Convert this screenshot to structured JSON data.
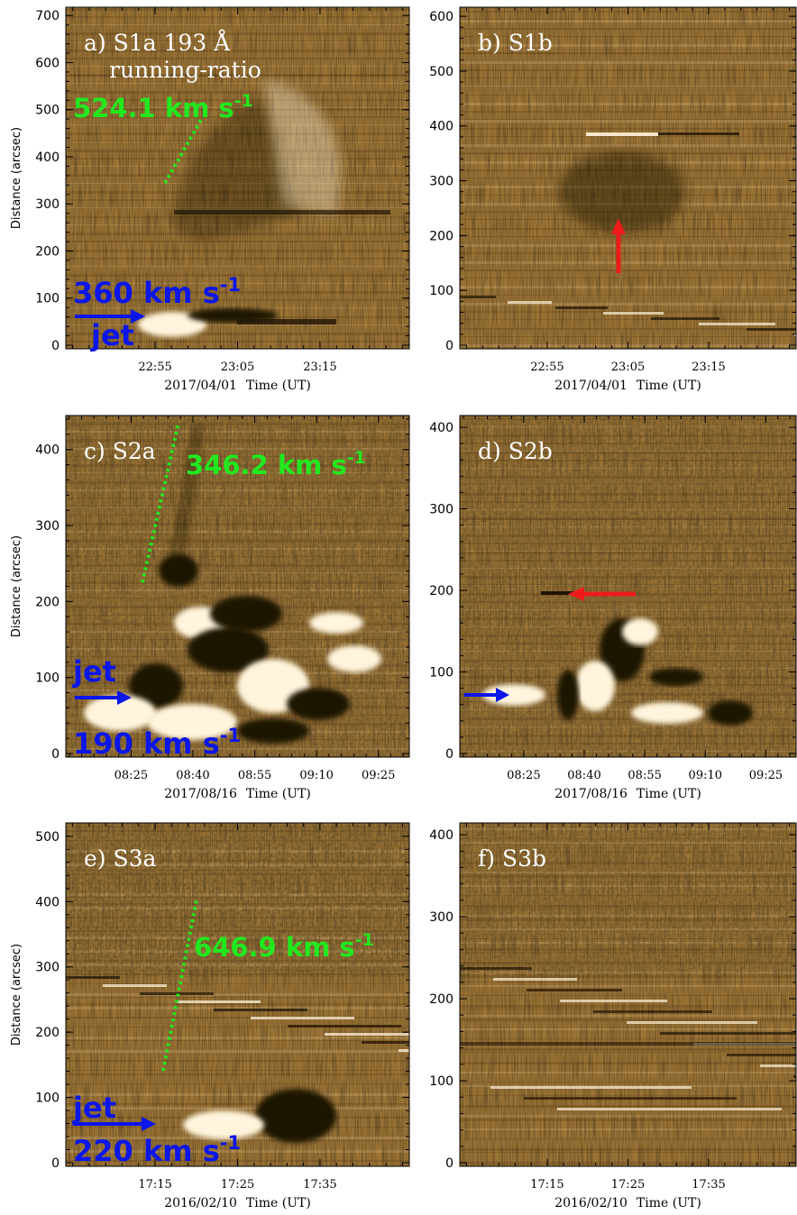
{
  "figure": {
    "ylabel": "Distance (arcsec)",
    "time_label": "Time (UT)",
    "panels": [
      {
        "id": "a",
        "title_lines": [
          "a) S1a 193 Å",
          "running-ratio"
        ],
        "date": "2017/04/01",
        "xticks": [
          "22:55",
          "23:05",
          "23:15"
        ],
        "yticks": [
          0,
          100,
          200,
          300,
          400,
          500,
          600,
          700
        ],
        "ymax": 710,
        "speed_label": "524.1 km s",
        "speed_label_color": "#22e81f",
        "front_speed_kms": 524.1,
        "jet_speed_label": "360 km s",
        "jet_speed_kms": 360,
        "jet_label": "jet"
      },
      {
        "id": "b",
        "title_lines": [
          "b) S1b"
        ],
        "date": "2017/04/01",
        "xticks": [
          "22:55",
          "23:05",
          "23:15"
        ],
        "yticks": [
          0,
          100,
          200,
          300,
          400,
          500,
          600
        ],
        "ymax": 610
      },
      {
        "id": "c",
        "title_lines": [
          "c) S2a"
        ],
        "date": "2017/08/16",
        "xticks": [
          "08:25",
          "08:40",
          "08:55",
          "09:10",
          "09:25"
        ],
        "yticks": [
          0,
          100,
          200,
          300,
          400
        ],
        "ymax": 440,
        "speed_label": "346.2 km s",
        "speed_label_color": "#22e81f",
        "front_speed_kms": 346.2,
        "jet_speed_label": "190 km s",
        "jet_speed_kms": 190,
        "jet_label": "jet"
      },
      {
        "id": "d",
        "title_lines": [
          "d) S2b"
        ],
        "date": "2017/08/16",
        "xticks": [
          "08:25",
          "08:40",
          "08:55",
          "09:10",
          "09:25"
        ],
        "yticks": [
          0,
          100,
          200,
          300,
          400
        ],
        "ymax": 410
      },
      {
        "id": "e",
        "title_lines": [
          "e) S3a"
        ],
        "date": "2016/02/10",
        "xticks": [
          "17:15",
          "17:25",
          "17:35"
        ],
        "yticks": [
          0,
          100,
          200,
          300,
          400,
          500
        ],
        "ymax": 515,
        "speed_label": "646.9 km s",
        "speed_label_color": "#22e81f",
        "front_speed_kms": 646.9,
        "jet_speed_label": "220 km s",
        "jet_speed_kms": 220,
        "jet_label": "jet"
      },
      {
        "id": "f",
        "title_lines": [
          "f) S3b"
        ],
        "date": "2016/02/10",
        "xticks": [
          "17:15",
          "17:25",
          "17:35"
        ],
        "yticks": [
          0,
          100,
          200,
          300,
          400
        ],
        "ymax": 410
      }
    ],
    "colors": {
      "background_tan": "#9b7436",
      "light_feature": "#fff4dc",
      "dark_feature": "#1f1406",
      "jet_arrow": "#0b16e8",
      "red_arrow": "#ee1b1b",
      "front_dashes": "#22e81f"
    },
    "superscript": "-1"
  }
}
